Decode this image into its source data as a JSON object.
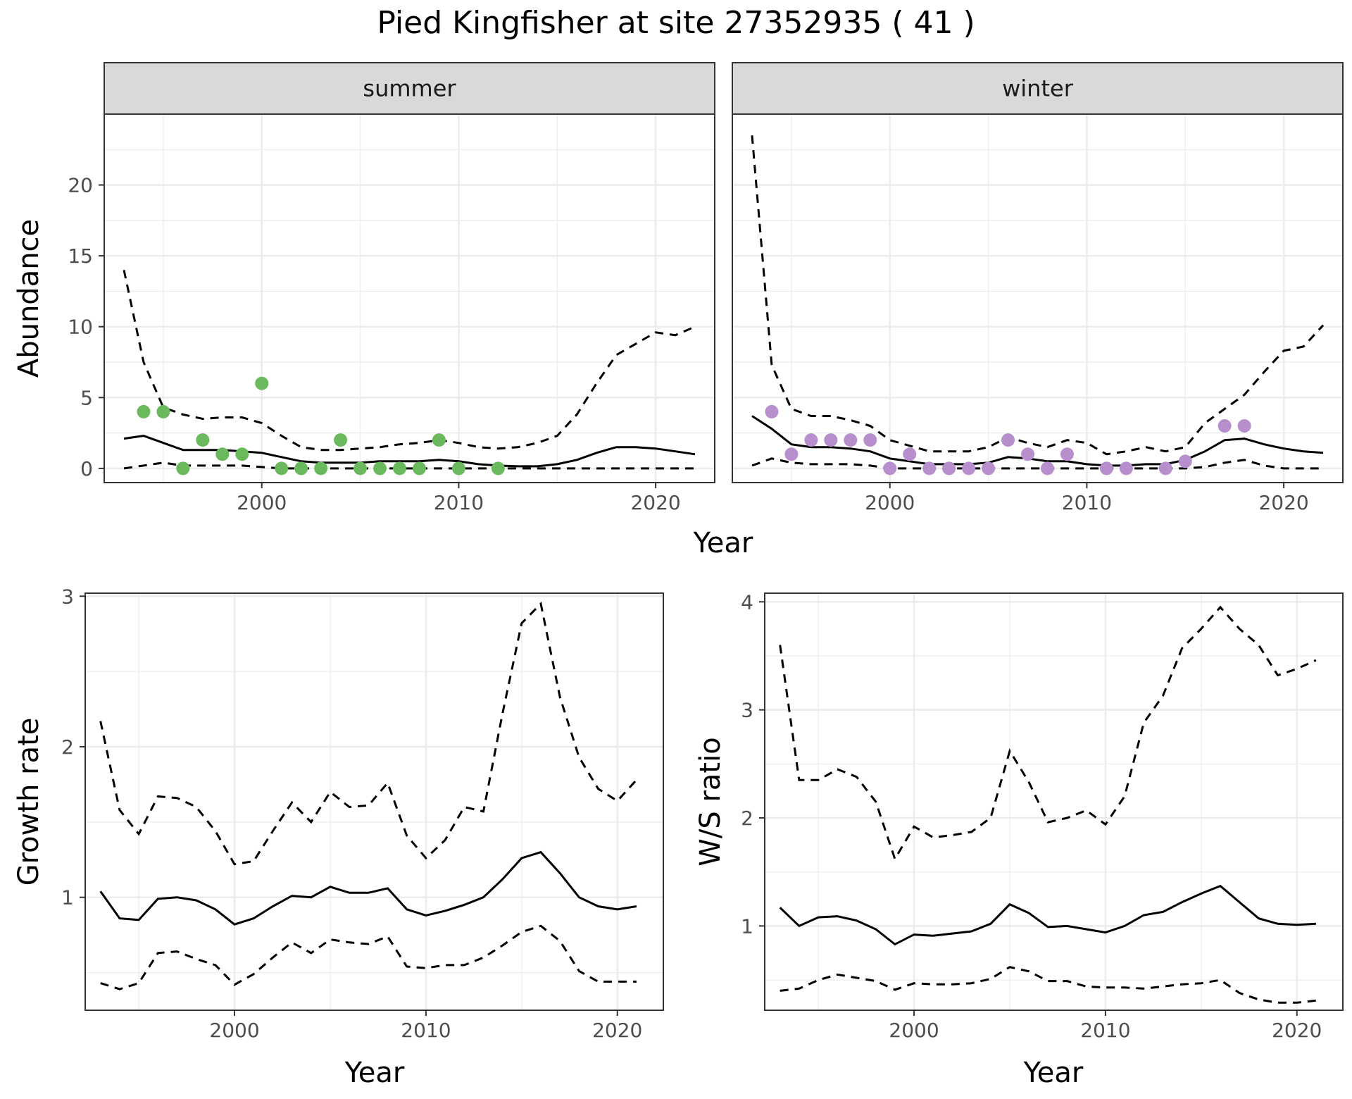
{
  "title": "Pied Kingfisher at site 27352935 ( 41 )",
  "colors": {
    "summer": "#6aba5d",
    "winter": "#b68fcc",
    "line": "#000000",
    "grid": "#ebebeb",
    "strip": "#d9d9d9"
  },
  "chart_data": [
    {
      "id": "summer",
      "type": "line",
      "strip": "summer",
      "xlabel": "Year",
      "ylabel": "Abundance",
      "xlim": [
        1992,
        2023
      ],
      "ylim": [
        -1,
        25
      ],
      "xticks": [
        2000,
        2010,
        2020
      ],
      "yticks": [
        0,
        5,
        10,
        15,
        20
      ],
      "fitted": {
        "x": [
          1993,
          1994,
          1995,
          1996,
          1997,
          1998,
          1999,
          2000,
          2001,
          2002,
          2003,
          2004,
          2005,
          2006,
          2007,
          2008,
          2009,
          2010,
          2011,
          2012,
          2013,
          2014,
          2015,
          2016,
          2017,
          2018,
          2019,
          2020,
          2021,
          2022
        ],
        "y": [
          2.1,
          2.3,
          1.8,
          1.3,
          1.3,
          1.3,
          1.2,
          1.1,
          0.8,
          0.5,
          0.4,
          0.4,
          0.4,
          0.5,
          0.5,
          0.5,
          0.6,
          0.5,
          0.3,
          0.2,
          0.15,
          0.15,
          0.3,
          0.6,
          1.1,
          1.5,
          1.5,
          1.4,
          1.2,
          1.0
        ]
      },
      "upper": {
        "x": [
          1993,
          1994,
          1995,
          1996,
          1997,
          1998,
          1999,
          2000,
          2001,
          2002,
          2003,
          2004,
          2005,
          2006,
          2007,
          2008,
          2009,
          2010,
          2011,
          2012,
          2013,
          2014,
          2015,
          2016,
          2017,
          2018,
          2019,
          2020,
          2021,
          2022
        ],
        "y": [
          14.0,
          7.5,
          4.3,
          3.8,
          3.5,
          3.6,
          3.6,
          3.2,
          2.3,
          1.5,
          1.3,
          1.3,
          1.4,
          1.5,
          1.7,
          1.8,
          2.0,
          1.8,
          1.5,
          1.4,
          1.5,
          1.8,
          2.3,
          3.8,
          6.0,
          8.0,
          8.8,
          9.6,
          9.4,
          10.0
        ]
      },
      "lower": {
        "x": [
          1993,
          1994,
          1995,
          1996,
          1997,
          1998,
          1999,
          2000,
          2001,
          2002,
          2003,
          2004,
          2005,
          2006,
          2007,
          2008,
          2009,
          2010,
          2011,
          2012,
          2013,
          2014,
          2015,
          2016,
          2017,
          2018,
          2019,
          2020,
          2021,
          2022
        ],
        "y": [
          0.0,
          0.2,
          0.4,
          0.2,
          0.2,
          0.2,
          0.2,
          0.1,
          0.0,
          0.0,
          0.0,
          0.0,
          0.0,
          0.0,
          0.0,
          0.0,
          0.0,
          0.0,
          0.0,
          0.0,
          0.0,
          0.0,
          0.0,
          0.0,
          0.0,
          0.0,
          0.0,
          0.0,
          0.0,
          0.0
        ]
      },
      "observed": {
        "x": [
          1994,
          1995,
          1996,
          1997,
          1998,
          1999,
          2000,
          2001,
          2002,
          2003,
          2004,
          2005,
          2006,
          2007,
          2008,
          2009,
          2010,
          2012
        ],
        "y": [
          4,
          4,
          0,
          2,
          1,
          1,
          6,
          0,
          0,
          0,
          2,
          0,
          0,
          0,
          0,
          2,
          0,
          0
        ]
      }
    },
    {
      "id": "winter",
      "type": "line",
      "strip": "winter",
      "xlabel": "Year",
      "ylabel": "",
      "xlim": [
        1992,
        2023
      ],
      "ylim": [
        -1,
        25
      ],
      "xticks": [
        2000,
        2010,
        2020
      ],
      "yticks": [
        0,
        5,
        10,
        15,
        20
      ],
      "fitted": {
        "x": [
          1993,
          1994,
          1995,
          1996,
          1997,
          1998,
          1999,
          2000,
          2001,
          2002,
          2003,
          2004,
          2005,
          2006,
          2007,
          2008,
          2009,
          2010,
          2011,
          2012,
          2013,
          2014,
          2015,
          2016,
          2017,
          2018,
          2019,
          2020,
          2021,
          2022
        ],
        "y": [
          3.7,
          2.8,
          1.7,
          1.5,
          1.5,
          1.4,
          1.2,
          0.7,
          0.5,
          0.3,
          0.3,
          0.3,
          0.4,
          0.8,
          0.7,
          0.5,
          0.5,
          0.3,
          0.2,
          0.2,
          0.3,
          0.3,
          0.6,
          1.2,
          2.0,
          2.1,
          1.7,
          1.4,
          1.2,
          1.1
        ]
      },
      "upper": {
        "x": [
          1993,
          1994,
          1995,
          1996,
          1997,
          1998,
          1999,
          2000,
          2001,
          2002,
          2003,
          2004,
          2005,
          2006,
          2007,
          2008,
          2009,
          2010,
          2011,
          2012,
          2013,
          2014,
          2015,
          2016,
          2017,
          2018,
          2019,
          2020,
          2021,
          2022
        ],
        "y": [
          23.5,
          7.3,
          4.2,
          3.7,
          3.7,
          3.4,
          3.0,
          2.0,
          1.6,
          1.2,
          1.2,
          1.2,
          1.5,
          2.2,
          1.8,
          1.5,
          2.0,
          1.8,
          1.0,
          1.2,
          1.5,
          1.2,
          1.5,
          3.2,
          4.2,
          5.2,
          6.8,
          8.3,
          8.6,
          10.1
        ]
      },
      "lower": {
        "x": [
          1993,
          1994,
          1995,
          1996,
          1997,
          1998,
          1999,
          2000,
          2001,
          2002,
          2003,
          2004,
          2005,
          2006,
          2007,
          2008,
          2009,
          2010,
          2011,
          2012,
          2013,
          2014,
          2015,
          2016,
          2017,
          2018,
          2019,
          2020,
          2021,
          2022
        ],
        "y": [
          0.2,
          0.7,
          0.4,
          0.3,
          0.3,
          0.3,
          0.2,
          0.0,
          0.0,
          0.0,
          0.0,
          0.0,
          0.0,
          0.0,
          0.0,
          0.0,
          0.0,
          0.0,
          0.0,
          0.0,
          0.0,
          0.0,
          0.0,
          0.1,
          0.4,
          0.6,
          0.2,
          0.0,
          0.0,
          0.0
        ]
      },
      "observed": {
        "x": [
          1994,
          1995,
          1996,
          1997,
          1998,
          1999,
          2000,
          2001,
          2002,
          2003,
          2004,
          2005,
          2006,
          2007,
          2008,
          2009,
          2011,
          2012,
          2014,
          2015,
          2017,
          2018
        ],
        "y": [
          4,
          1,
          2,
          2,
          2,
          2,
          0,
          1,
          0,
          0,
          0,
          0,
          2,
          1,
          0,
          1,
          0,
          0,
          0,
          0.5,
          3,
          3
        ]
      }
    },
    {
      "id": "growth",
      "type": "line",
      "strip": "",
      "xlabel": "Year",
      "ylabel": "Growth rate",
      "xlim": [
        1992.2,
        2022.4
      ],
      "ylim": [
        0.25,
        3.02
      ],
      "xticks": [
        2000,
        2010,
        2020
      ],
      "yticks": [
        1,
        2,
        3
      ],
      "fitted": {
        "x": [
          1993,
          1994,
          1995,
          1996,
          1997,
          1998,
          1999,
          2000,
          2001,
          2002,
          2003,
          2004,
          2005,
          2006,
          2007,
          2008,
          2009,
          2010,
          2011,
          2012,
          2013,
          2014,
          2015,
          2016,
          2017,
          2018,
          2019,
          2020,
          2021
        ],
        "y": [
          1.04,
          0.86,
          0.85,
          0.99,
          1.0,
          0.98,
          0.92,
          0.82,
          0.86,
          0.94,
          1.01,
          1.0,
          1.07,
          1.03,
          1.03,
          1.06,
          0.92,
          0.88,
          0.91,
          0.95,
          1.0,
          1.12,
          1.26,
          1.3,
          1.16,
          1.0,
          0.94,
          0.92,
          0.94
        ]
      },
      "upper": {
        "x": [
          1993,
          1994,
          1995,
          1996,
          1997,
          1998,
          1999,
          2000,
          2001,
          2002,
          2003,
          2004,
          2005,
          2006,
          2007,
          2008,
          2009,
          2010,
          2011,
          2012,
          2013,
          2014,
          2015,
          2016,
          2017,
          2018,
          2019,
          2020,
          2021
        ],
        "y": [
          2.17,
          1.58,
          1.42,
          1.67,
          1.66,
          1.6,
          1.44,
          1.22,
          1.24,
          1.44,
          1.63,
          1.5,
          1.7,
          1.6,
          1.61,
          1.76,
          1.41,
          1.26,
          1.38,
          1.6,
          1.57,
          2.22,
          2.82,
          2.95,
          2.33,
          1.93,
          1.72,
          1.64,
          1.78
        ]
      },
      "lower": {
        "x": [
          1993,
          1994,
          1995,
          1996,
          1997,
          1998,
          1999,
          2000,
          2001,
          2002,
          2003,
          2004,
          2005,
          2006,
          2007,
          2008,
          2009,
          2010,
          2011,
          2012,
          2013,
          2014,
          2015,
          2016,
          2017,
          2018,
          2019,
          2020,
          2021
        ],
        "y": [
          0.43,
          0.39,
          0.43,
          0.63,
          0.64,
          0.59,
          0.55,
          0.42,
          0.49,
          0.6,
          0.7,
          0.63,
          0.72,
          0.7,
          0.69,
          0.74,
          0.54,
          0.53,
          0.55,
          0.55,
          0.6,
          0.68,
          0.77,
          0.81,
          0.71,
          0.51,
          0.44,
          0.44,
          0.44
        ]
      }
    },
    {
      "id": "ws",
      "type": "line",
      "strip": "",
      "xlabel": "Year",
      "ylabel": "W/S ratio",
      "xlim": [
        1992.2,
        2022.4
      ],
      "ylim": [
        0.22,
        4.08
      ],
      "xticks": [
        2000,
        2010,
        2020
      ],
      "yticks": [
        1,
        2,
        3,
        4
      ],
      "fitted": {
        "x": [
          1993,
          1994,
          1995,
          1996,
          1997,
          1998,
          1999,
          2000,
          2001,
          2002,
          2003,
          2004,
          2005,
          2006,
          2007,
          2008,
          2009,
          2010,
          2011,
          2012,
          2013,
          2014,
          2015,
          2016,
          2017,
          2018,
          2019,
          2020,
          2021
        ],
        "y": [
          1.17,
          1.0,
          1.08,
          1.09,
          1.05,
          0.97,
          0.83,
          0.92,
          0.91,
          0.93,
          0.95,
          1.02,
          1.2,
          1.12,
          0.99,
          1.0,
          0.97,
          0.94,
          1.0,
          1.1,
          1.13,
          1.22,
          1.3,
          1.37,
          1.22,
          1.07,
          1.02,
          1.01,
          1.02
        ]
      },
      "upper": {
        "x": [
          1993,
          1994,
          1995,
          1996,
          1997,
          1998,
          1999,
          2000,
          2001,
          2002,
          2003,
          2004,
          2005,
          2006,
          2007,
          2008,
          2009,
          2010,
          2011,
          2012,
          2013,
          2014,
          2015,
          2016,
          2017,
          2018,
          2019,
          2020,
          2021
        ],
        "y": [
          3.6,
          2.35,
          2.35,
          2.45,
          2.38,
          2.15,
          1.62,
          1.92,
          1.82,
          1.84,
          1.87,
          2.0,
          2.62,
          2.33,
          1.96,
          2.0,
          2.07,
          1.94,
          2.2,
          2.88,
          3.13,
          3.57,
          3.75,
          3.95,
          3.75,
          3.6,
          3.32,
          3.38,
          3.46
        ]
      },
      "lower": {
        "x": [
          1993,
          1994,
          1995,
          1996,
          1997,
          1998,
          1999,
          2000,
          2001,
          2002,
          2003,
          2004,
          2005,
          2006,
          2007,
          2008,
          2009,
          2010,
          2011,
          2012,
          2013,
          2014,
          2015,
          2016,
          2017,
          2018,
          2019,
          2020,
          2021
        ],
        "y": [
          0.4,
          0.42,
          0.5,
          0.55,
          0.52,
          0.49,
          0.41,
          0.47,
          0.46,
          0.46,
          0.47,
          0.51,
          0.62,
          0.58,
          0.49,
          0.49,
          0.44,
          0.43,
          0.43,
          0.42,
          0.44,
          0.46,
          0.47,
          0.5,
          0.38,
          0.32,
          0.29,
          0.29,
          0.31
        ]
      }
    }
  ]
}
